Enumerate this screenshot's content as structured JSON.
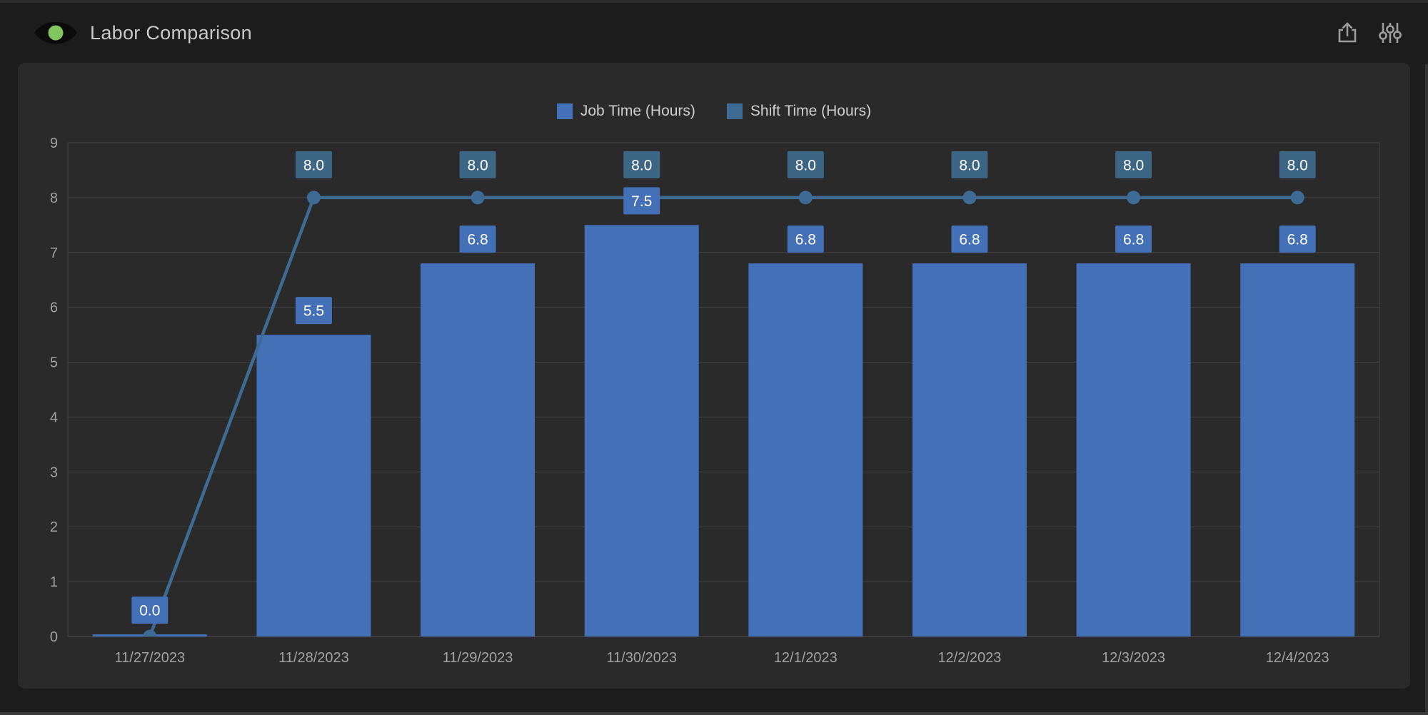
{
  "widget": {
    "title": "Labor Comparison",
    "toolbar": {
      "export_tooltip": "Export",
      "filters_tooltip": "Options"
    }
  },
  "colors": {
    "page_bg": "#1c1c1c",
    "panel_bg": "#2a2a2a",
    "gridline": "#454545",
    "axis_line": "#505050",
    "axis_text": "#a2a2a2",
    "label_text": "#ffffff",
    "title_text": "#c8c8c8",
    "eye_pupil_green": "#82c45e",
    "icon_gray": "#9c9c9c"
  },
  "chart_data": {
    "type": "bar",
    "title": "Labor Comparison",
    "categories": [
      "11/27/2023",
      "11/28/2023",
      "11/29/2023",
      "11/30/2023",
      "12/1/2023",
      "12/2/2023",
      "12/3/2023",
      "12/4/2023"
    ],
    "series": [
      {
        "name": "Job Time (Hours)",
        "type": "bar",
        "color": "#4470b8",
        "values": [
          0.0,
          5.5,
          6.8,
          7.5,
          6.8,
          6.8,
          6.8,
          6.8
        ],
        "data_labels": [
          "0.0",
          "5.5",
          "6.8",
          "7.5",
          "6.8",
          "6.8",
          "6.8",
          "6.8"
        ],
        "label_bg": "#4470b8"
      },
      {
        "name": "Shift Time (Hours)",
        "type": "line",
        "color": "#3d6b94",
        "marker_color": "#3d6b94",
        "values": [
          0.0,
          8.0,
          8.0,
          8.0,
          8.0,
          8.0,
          8.0,
          8.0
        ],
        "data_labels": [
          null,
          "8.0",
          "8.0",
          "8.0",
          "8.0",
          "8.0",
          "8.0",
          "8.0"
        ],
        "label_bg": "#3d6584"
      }
    ],
    "ylim": [
      0,
      9
    ],
    "ytick_step": 1,
    "yticks": [
      0,
      1,
      2,
      3,
      4,
      5,
      6,
      7,
      8,
      9
    ],
    "xlabel": "",
    "ylabel": "",
    "grid": "horizontal",
    "legend_position": "top-center"
  }
}
